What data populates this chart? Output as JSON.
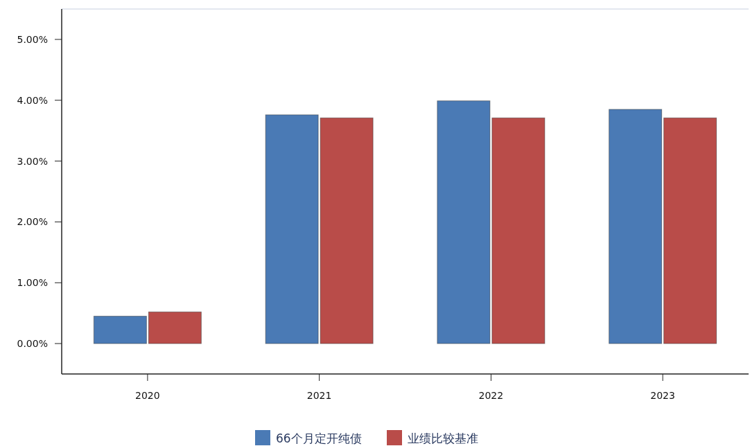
{
  "chart_data": {
    "type": "bar",
    "categories": [
      "2020",
      "2021",
      "2022",
      "2023"
    ],
    "series": [
      {
        "name": "66个月定开纯债",
        "color": "#4a7ab5",
        "values": [
          0.45,
          3.76,
          3.99,
          3.85
        ]
      },
      {
        "name": "业绩比较基准",
        "color": "#b94c49",
        "values": [
          0.52,
          3.71,
          3.71,
          3.71
        ]
      }
    ],
    "ylim": [
      -0.5,
      5.5
    ],
    "yticks": [
      {
        "value": 0,
        "label": "0.00%"
      },
      {
        "value": 1,
        "label": "1.00%"
      },
      {
        "value": 2,
        "label": "2.00%"
      },
      {
        "value": 3,
        "label": "3.00%"
      },
      {
        "value": 4,
        "label": "4.00%"
      },
      {
        "value": 5,
        "label": "5.00%"
      }
    ],
    "grid": false,
    "legend": "bottom"
  }
}
